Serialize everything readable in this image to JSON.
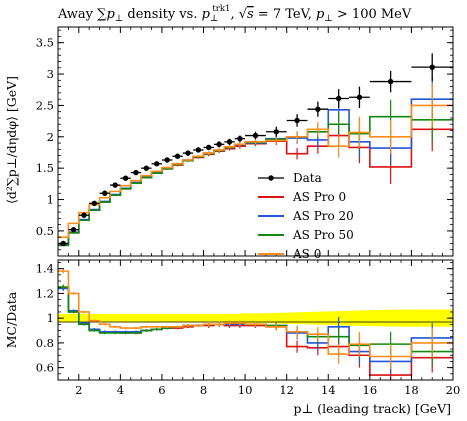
{
  "chart_data": [
    {
      "type": "line",
      "title": "Away ∑p⊥ density vs. p⊥trk1, √s = 7 TeV, p⊥ > 100 MeV",
      "ylabel": "⟨d²∑p⊥/dηdφ⟩ [GeV]",
      "xlim": [
        1,
        20
      ],
      "ylim": [
        0.1,
        3.75
      ],
      "yticks": [
        0.5,
        1,
        1.5,
        2,
        2.5,
        3,
        3.5
      ],
      "grid": false,
      "legend_position": "center-right",
      "data": {
        "name": "Data",
        "color": "#000000",
        "x": [
          1.25,
          1.75,
          2.25,
          2.75,
          3.25,
          3.75,
          4.25,
          4.75,
          5.25,
          5.75,
          6.25,
          6.75,
          7.25,
          7.75,
          8.25,
          8.75,
          9.25,
          9.75,
          10.5,
          11.5,
          12.5,
          13.5,
          14.5,
          15.5,
          17,
          19
        ],
        "xerr": [
          0.25,
          0.25,
          0.25,
          0.25,
          0.25,
          0.25,
          0.25,
          0.25,
          0.25,
          0.25,
          0.25,
          0.25,
          0.25,
          0.25,
          0.25,
          0.25,
          0.25,
          0.25,
          0.5,
          0.5,
          0.5,
          0.5,
          0.5,
          0.5,
          1,
          1
        ],
        "y": [
          0.3,
          0.52,
          0.75,
          0.94,
          1.1,
          1.23,
          1.34,
          1.43,
          1.5,
          1.57,
          1.63,
          1.69,
          1.74,
          1.79,
          1.83,
          1.88,
          1.92,
          1.97,
          2.02,
          2.08,
          2.26,
          2.44,
          2.61,
          2.63,
          2.88,
          3.11
        ],
        "yerr": [
          0.03,
          0.03,
          0.03,
          0.03,
          0.03,
          0.03,
          0.03,
          0.03,
          0.03,
          0.03,
          0.03,
          0.03,
          0.04,
          0.04,
          0.04,
          0.05,
          0.05,
          0.05,
          0.06,
          0.08,
          0.1,
          0.12,
          0.15,
          0.17,
          0.17,
          0.22
        ]
      },
      "series": [
        {
          "name": "AS Pro 0",
          "color": "#dd1111",
          "edges": [
            1,
            1.5,
            2,
            2.5,
            3,
            3.5,
            4,
            4.5,
            5,
            5.5,
            6,
            6.5,
            7,
            7.5,
            8,
            8.5,
            9,
            9.5,
            10,
            11,
            12,
            13,
            14,
            15,
            16,
            18,
            20
          ],
          "values": [
            0.27,
            0.47,
            0.67,
            0.83,
            0.96,
            1.07,
            1.17,
            1.26,
            1.35,
            1.42,
            1.49,
            1.55,
            1.62,
            1.67,
            1.72,
            1.77,
            1.81,
            1.85,
            1.89,
            1.93,
            1.73,
            1.85,
            2.02,
            1.83,
            1.52,
            2.12
          ],
          "errors": [
            0.01,
            0.01,
            0.01,
            0.01,
            0.01,
            0.01,
            0.01,
            0.01,
            0.01,
            0.01,
            0.02,
            0.02,
            0.02,
            0.02,
            0.03,
            0.03,
            0.03,
            0.04,
            0.04,
            0.06,
            0.09,
            0.12,
            0.18,
            0.25,
            0.27,
            0.35
          ]
        },
        {
          "name": "AS Pro 20",
          "color": "#2255dd",
          "edges": [
            1,
            1.5,
            2,
            2.5,
            3,
            3.5,
            4,
            4.5,
            5,
            5.5,
            6,
            6.5,
            7,
            7.5,
            8,
            8.5,
            9,
            9.5,
            10,
            11,
            12,
            13,
            14,
            15,
            16,
            18,
            20
          ],
          "values": [
            0.28,
            0.48,
            0.68,
            0.84,
            0.97,
            1.08,
            1.18,
            1.27,
            1.36,
            1.43,
            1.5,
            1.57,
            1.63,
            1.69,
            1.74,
            1.78,
            1.83,
            1.87,
            1.9,
            1.97,
            1.98,
            1.95,
            2.43,
            1.92,
            1.82,
            2.6
          ],
          "errors": [
            0.01,
            0.01,
            0.01,
            0.01,
            0.01,
            0.01,
            0.01,
            0.01,
            0.01,
            0.01,
            0.02,
            0.02,
            0.02,
            0.02,
            0.03,
            0.03,
            0.03,
            0.04,
            0.04,
            0.06,
            0.09,
            0.12,
            0.18,
            0.25,
            0.27,
            0.35
          ]
        },
        {
          "name": "AS Pro 50",
          "color": "#118811",
          "edges": [
            1,
            1.5,
            2,
            2.5,
            3,
            3.5,
            4,
            4.5,
            5,
            5.5,
            6,
            6.5,
            7,
            7.5,
            8,
            8.5,
            9,
            9.5,
            10,
            11,
            12,
            13,
            14,
            15,
            16,
            18,
            20
          ],
          "values": [
            0.27,
            0.47,
            0.67,
            0.83,
            0.96,
            1.07,
            1.17,
            1.26,
            1.35,
            1.42,
            1.49,
            1.56,
            1.62,
            1.68,
            1.73,
            1.78,
            1.83,
            1.88,
            1.91,
            1.96,
            2.0,
            2.08,
            2.2,
            2.05,
            2.32,
            2.27
          ],
          "errors": [
            0.01,
            0.01,
            0.01,
            0.01,
            0.01,
            0.01,
            0.01,
            0.01,
            0.01,
            0.01,
            0.02,
            0.02,
            0.02,
            0.02,
            0.03,
            0.03,
            0.03,
            0.04,
            0.04,
            0.06,
            0.09,
            0.12,
            0.18,
            0.25,
            0.27,
            0.35
          ]
        },
        {
          "name": "AS 0",
          "color": "#ff8c1a",
          "edges": [
            1,
            1.5,
            2,
            2.5,
            3,
            3.5,
            4,
            4.5,
            5,
            5.5,
            6,
            6.5,
            7,
            7.5,
            8,
            8.5,
            9,
            9.5,
            10,
            11,
            12,
            13,
            14,
            15,
            16,
            18,
            20
          ],
          "values": [
            0.4,
            0.62,
            0.79,
            0.92,
            1.03,
            1.13,
            1.22,
            1.3,
            1.38,
            1.45,
            1.51,
            1.57,
            1.63,
            1.69,
            1.74,
            1.79,
            1.84,
            1.88,
            1.92,
            1.94,
            2.0,
            2.12,
            1.85,
            2.07,
            2.0,
            2.5
          ],
          "errors": [
            0.01,
            0.01,
            0.01,
            0.01,
            0.01,
            0.01,
            0.01,
            0.01,
            0.01,
            0.01,
            0.02,
            0.02,
            0.02,
            0.02,
            0.03,
            0.03,
            0.03,
            0.04,
            0.04,
            0.06,
            0.09,
            0.12,
            0.18,
            0.25,
            0.27,
            0.35
          ]
        }
      ]
    },
    {
      "type": "line",
      "ylabel": "MC/Data",
      "xlabel": "p⊥ (leading track) [GeV]",
      "xlim": [
        1,
        20
      ],
      "ylim": [
        0.5,
        1.47
      ],
      "yticks": [
        0.6,
        0.8,
        1,
        1.2,
        1.4
      ],
      "xticks": [
        2,
        4,
        6,
        8,
        10,
        12,
        14,
        16,
        18,
        20
      ],
      "grid": false,
      "band": {
        "color": "#ffff00",
        "x": [
          1,
          1.5,
          2,
          2.5,
          3,
          3.5,
          4,
          4.5,
          5,
          5.5,
          6,
          6.5,
          7,
          7.5,
          8,
          8.5,
          9,
          9.5,
          10,
          11,
          12,
          13,
          14,
          15,
          16,
          18,
          20
        ],
        "lower": [
          0.965,
          0.965,
          0.965,
          0.965,
          0.965,
          0.965,
          0.965,
          0.965,
          0.965,
          0.965,
          0.965,
          0.965,
          0.965,
          0.965,
          0.965,
          0.965,
          0.965,
          0.965,
          0.96,
          0.96,
          0.955,
          0.95,
          0.945,
          0.94,
          0.935,
          0.93,
          0.93
        ],
        "upper": [
          1.035,
          1.035,
          1.035,
          1.035,
          1.035,
          1.035,
          1.035,
          1.035,
          1.035,
          1.035,
          1.035,
          1.035,
          1.035,
          1.035,
          1.035,
          1.035,
          1.035,
          1.035,
          1.04,
          1.04,
          1.045,
          1.05,
          1.055,
          1.06,
          1.065,
          1.07,
          1.07
        ]
      },
      "ratio_series": [
        {
          "name": "AS Pro 0",
          "color": "#dd1111",
          "edges": [
            1,
            1.5,
            2,
            2.5,
            3,
            3.5,
            4,
            4.5,
            5,
            5.5,
            6,
            6.5,
            7,
            7.5,
            8,
            8.5,
            9,
            9.5,
            10,
            11,
            12,
            13,
            14,
            15,
            16,
            18,
            20
          ],
          "values": [
            1.25,
            1.05,
            0.96,
            0.91,
            0.89,
            0.89,
            0.88,
            0.88,
            0.9,
            0.91,
            0.92,
            0.92,
            0.93,
            0.94,
            0.94,
            0.95,
            0.94,
            0.94,
            0.94,
            0.93,
            0.77,
            0.76,
            0.77,
            0.7,
            0.54,
            0.68
          ],
          "errors": [
            0.02,
            0.01,
            0.01,
            0.01,
            0.01,
            0.01,
            0.01,
            0.01,
            0.01,
            0.01,
            0.01,
            0.01,
            0.01,
            0.01,
            0.02,
            0.02,
            0.02,
            0.02,
            0.02,
            0.03,
            0.05,
            0.06,
            0.08,
            0.1,
            0.1,
            0.12
          ]
        },
        {
          "name": "AS Pro 20",
          "color": "#2255dd",
          "edges": [
            1,
            1.5,
            2,
            2.5,
            3,
            3.5,
            4,
            4.5,
            5,
            5.5,
            6,
            6.5,
            7,
            7.5,
            8,
            8.5,
            9,
            9.5,
            10,
            11,
            12,
            13,
            14,
            15,
            16,
            18,
            20
          ],
          "values": [
            1.24,
            1.06,
            0.96,
            0.91,
            0.89,
            0.89,
            0.89,
            0.89,
            0.9,
            0.91,
            0.92,
            0.93,
            0.94,
            0.94,
            0.95,
            0.95,
            0.95,
            0.95,
            0.95,
            0.94,
            0.88,
            0.8,
            0.93,
            0.73,
            0.65,
            0.84
          ],
          "errors": [
            0.02,
            0.01,
            0.01,
            0.01,
            0.01,
            0.01,
            0.01,
            0.01,
            0.01,
            0.01,
            0.01,
            0.01,
            0.01,
            0.01,
            0.02,
            0.02,
            0.02,
            0.02,
            0.02,
            0.03,
            0.05,
            0.06,
            0.08,
            0.1,
            0.1,
            0.12
          ]
        },
        {
          "name": "AS Pro 50",
          "color": "#118811",
          "edges": [
            1,
            1.5,
            2,
            2.5,
            3,
            3.5,
            4,
            4.5,
            5,
            5.5,
            6,
            6.5,
            7,
            7.5,
            8,
            8.5,
            9,
            9.5,
            10,
            11,
            12,
            13,
            14,
            15,
            16,
            18,
            20
          ],
          "values": [
            1.25,
            1.05,
            0.95,
            0.9,
            0.88,
            0.88,
            0.88,
            0.88,
            0.9,
            0.91,
            0.92,
            0.93,
            0.94,
            0.94,
            0.95,
            0.95,
            0.96,
            0.96,
            0.95,
            0.94,
            0.89,
            0.85,
            0.85,
            0.78,
            0.79,
            0.73
          ],
          "errors": [
            0.02,
            0.01,
            0.01,
            0.01,
            0.01,
            0.01,
            0.01,
            0.01,
            0.01,
            0.01,
            0.01,
            0.01,
            0.01,
            0.01,
            0.02,
            0.02,
            0.02,
            0.02,
            0.02,
            0.03,
            0.05,
            0.06,
            0.08,
            0.1,
            0.1,
            0.12
          ]
        },
        {
          "name": "AS 0",
          "color": "#ff8c1a",
          "edges": [
            1,
            1.5,
            2,
            2.5,
            3,
            3.5,
            4,
            4.5,
            5,
            5.5,
            6,
            6.5,
            7,
            7.5,
            8,
            8.5,
            9,
            9.5,
            10,
            11,
            12,
            13,
            14,
            15,
            16,
            18,
            20
          ],
          "values": [
            1.38,
            1.2,
            1.05,
            0.98,
            0.95,
            0.93,
            0.92,
            0.92,
            0.93,
            0.93,
            0.93,
            0.93,
            0.94,
            0.94,
            0.95,
            0.95,
            0.96,
            0.96,
            0.95,
            0.93,
            0.89,
            0.87,
            0.71,
            0.79,
            0.69,
            0.8
          ],
          "errors": [
            0.02,
            0.01,
            0.01,
            0.01,
            0.01,
            0.01,
            0.01,
            0.01,
            0.01,
            0.01,
            0.01,
            0.01,
            0.01,
            0.01,
            0.02,
            0.02,
            0.02,
            0.02,
            0.02,
            0.03,
            0.05,
            0.06,
            0.08,
            0.1,
            0.1,
            0.12
          ]
        }
      ]
    }
  ],
  "labels": {
    "title_prefix": "Away ",
    "title_sum": "∑",
    "title_p": "p",
    "title_perp": "⊥",
    "title_mid": " density vs. ",
    "title_trk": "trk1",
    "title_sqrt": "√",
    "title_s": "s",
    "title_energy": " = 7 TeV, ",
    "title_cut": " > 100 MeV",
    "ylabel_main": "⟨d²∑p⊥/dηdφ⟩ [GeV]",
    "ylabel_ratio": "MC/Data",
    "xlabel": "p⊥ (leading track) [GeV]"
  }
}
